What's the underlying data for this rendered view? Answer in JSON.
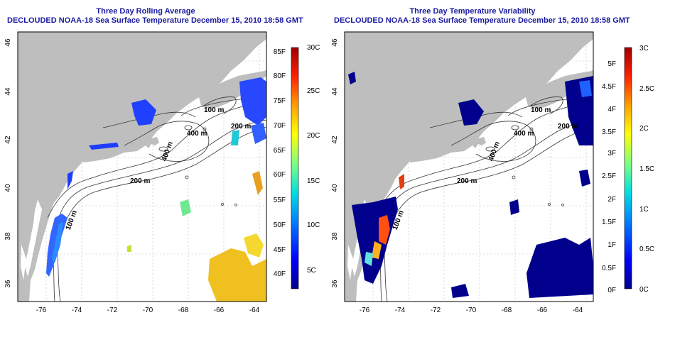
{
  "left": {
    "title_line1": "Three Day Rolling Average",
    "title_line2": "DECLOUDED NOAA-18 Sea Surface Temperature December 15, 2010 18:58 GMT",
    "lon_ticks": [
      "-76",
      "-74",
      "-72",
      "-70",
      "-68",
      "-66",
      "-64"
    ],
    "lat_ticks": [
      "36",
      "38",
      "40",
      "42",
      "44",
      "46"
    ],
    "f_ticks": [
      "40F",
      "45F",
      "50F",
      "55F",
      "60F",
      "65F",
      "70F",
      "75F",
      "80F",
      "85F"
    ],
    "c_ticks": [
      "5C",
      "10C",
      "15C",
      "20C",
      "25C",
      "30C"
    ],
    "contours": [
      "100 m",
      "400 m",
      "200 m",
      "200 m",
      "400 m",
      "100 m",
      "200 m"
    ]
  },
  "right": {
    "title_line1": "Three Day Temperature Variability",
    "title_line2": "DECLOUDED NOAA-18 Sea Surface Temperature December 15, 2010 18:58 GMT",
    "lon_ticks": [
      "-76",
      "-74",
      "-72",
      "-70",
      "-68",
      "-66",
      "-64"
    ],
    "lat_ticks": [
      "36",
      "38",
      "40",
      "42",
      "44",
      "46"
    ],
    "f_ticks": [
      "0F",
      "0.5F",
      "1F",
      "1.5F",
      "2F",
      "2.5F",
      "3F",
      "3.5F",
      "4F",
      "4.5F",
      "5F"
    ],
    "c_ticks": [
      "0C",
      "0.5C",
      "1C",
      "1.5C",
      "2C",
      "2.5C",
      "3C"
    ],
    "contours": [
      "100 m",
      "400 m",
      "200 m",
      "200 m",
      "400 m",
      "100 m",
      "200 m"
    ]
  },
  "colors": {
    "land": "#bebebe",
    "ocean": "#ffffff",
    "title": "#1a1aa0",
    "scale": [
      "#00008c",
      "#0000ff",
      "#0080ff",
      "#00e0e0",
      "#80ff80",
      "#ffff00",
      "#ffa000",
      "#ff2000",
      "#a00000"
    ]
  }
}
